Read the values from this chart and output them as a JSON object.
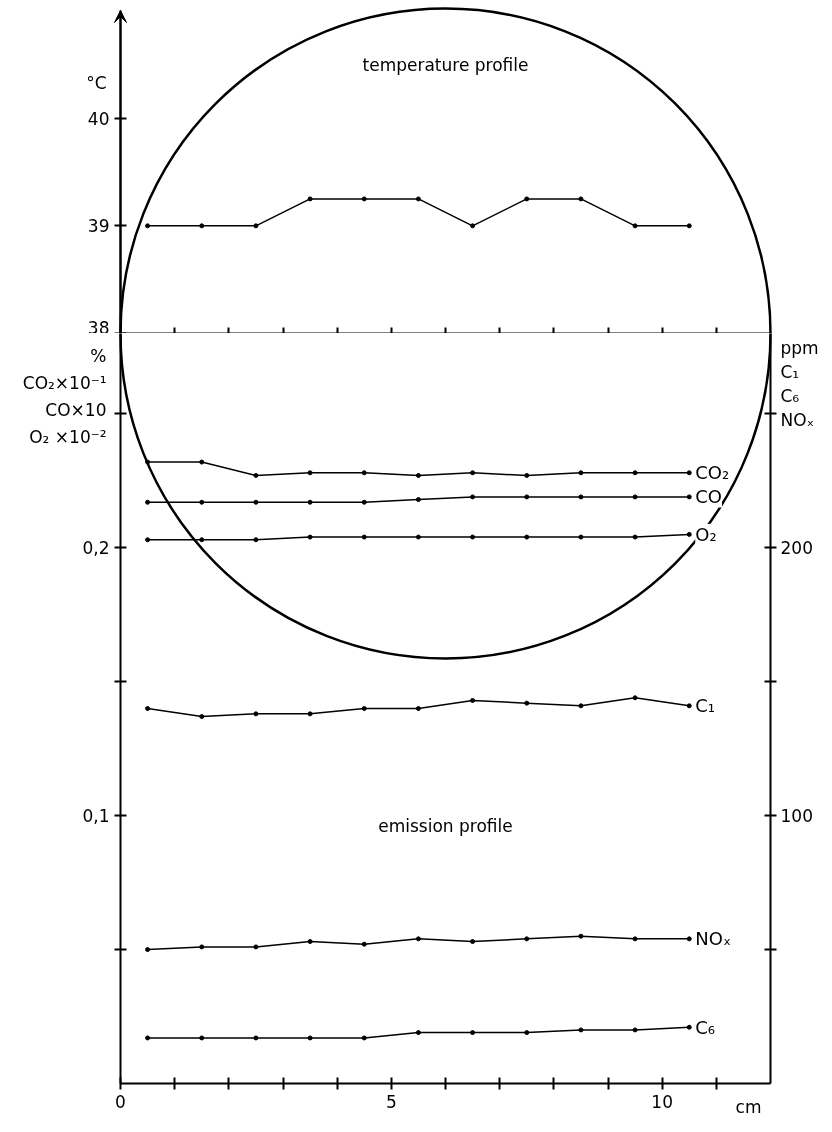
{
  "chart_data": [
    {
      "type": "line",
      "ylabel": "°C",
      "annotations": [
        "temperature profile"
      ],
      "xlim": [
        0,
        12
      ],
      "xticks": [
        {
          "value": 1,
          "label": null
        },
        {
          "value": 2,
          "label": null
        },
        {
          "value": 3,
          "label": null
        },
        {
          "value": 4,
          "label": null
        },
        {
          "value": 5,
          "label": null
        },
        {
          "value": 6,
          "label": null
        },
        {
          "value": 7,
          "label": null
        },
        {
          "value": 8,
          "label": null
        },
        {
          "value": 9,
          "label": null
        },
        {
          "value": 10,
          "label": null
        },
        {
          "value": 11,
          "label": null
        }
      ],
      "ylim": [
        38,
        41
      ],
      "yticks": [
        38,
        39,
        40
      ],
      "tick_labels": "y",
      "grid": false,
      "marker": "circle",
      "line_style": "solid",
      "x": [
        0.5,
        1.5,
        2.5,
        3.5,
        4.5,
        5.5,
        6.5,
        7.5,
        8.5,
        9.5,
        10.5
      ],
      "series": [
        {
          "color": "#000000",
          "values": [
            39,
            39,
            39,
            39.25,
            39.25,
            39.25,
            39,
            39.25,
            39.25,
            39,
            39
          ]
        }
      ]
    },
    {
      "type": "line",
      "xlabel": "cm",
      "ylabel": "%\nCO₂×10⁻¹\nCO×10\nO₂ ×10⁻²",
      "y2label": "ppm\nC₁\nC₆\nNOₓ",
      "annotations": [
        "emission profile"
      ],
      "xlim": [
        0,
        12
      ],
      "xticks": [
        0,
        {
          "value": 1,
          "label": null
        },
        {
          "value": 2,
          "label": null
        },
        {
          "value": 3,
          "label": null
        },
        {
          "value": 4,
          "label": null
        },
        5,
        {
          "value": 6,
          "label": null
        },
        {
          "value": 7,
          "label": null
        },
        {
          "value": 8,
          "label": null
        },
        {
          "value": 9,
          "label": null
        },
        10,
        {
          "value": 11,
          "label": null
        }
      ],
      "ylim": [
        0,
        0.28
      ],
      "yticks": [
        {
          "value": 0.05,
          "label": null
        },
        {
          "value": 0.1,
          "label": "0,1"
        },
        {
          "value": 0.15,
          "label": null
        },
        {
          "value": 0.2,
          "label": "0,2"
        },
        {
          "value": 0.25,
          "label": null
        }
      ],
      "y2lim": [
        0,
        280
      ],
      "y2ticks": [
        {
          "value": 50,
          "label": null
        },
        100,
        {
          "value": 150,
          "label": null
        },
        200,
        {
          "value": 250,
          "label": null
        }
      ],
      "grid": false,
      "marker": "circle",
      "line_style": "solid",
      "x": [
        0.5,
        1.5,
        2.5,
        3.5,
        4.5,
        5.5,
        6.5,
        7.5,
        8.5,
        9.5,
        10.5
      ],
      "series": [
        {
          "name": "CO₂",
          "color": "#000000",
          "values": [
            0.232,
            0.232,
            0.227,
            0.228,
            0.228,
            0.227,
            0.228,
            0.227,
            0.228,
            0.228,
            0.228
          ]
        },
        {
          "name": "CO",
          "color": "#000000",
          "values": [
            0.217,
            0.217,
            0.217,
            0.217,
            0.217,
            0.218,
            0.219,
            0.219,
            0.219,
            0.219,
            0.219
          ]
        },
        {
          "name": "O₂",
          "color": "#000000",
          "values": [
            0.203,
            0.203,
            0.203,
            0.204,
            0.204,
            0.204,
            0.204,
            0.204,
            0.204,
            0.204,
            0.205
          ]
        },
        {
          "name": "C₁",
          "color": "#000000",
          "axis": "y2",
          "values": [
            140,
            137,
            138,
            138,
            140,
            140,
            143,
            142,
            141,
            144,
            141
          ]
        },
        {
          "name": "NOₓ",
          "color": "#000000",
          "axis": "y2",
          "values": [
            50,
            51,
            51,
            53,
            52,
            54,
            53,
            54,
            55,
            54,
            54
          ]
        },
        {
          "name": "C₆",
          "color": "#000000",
          "axis": "y2",
          "values": [
            17,
            17,
            17,
            17,
            17,
            19,
            19,
            19,
            20,
            20,
            21
          ]
        }
      ]
    }
  ]
}
